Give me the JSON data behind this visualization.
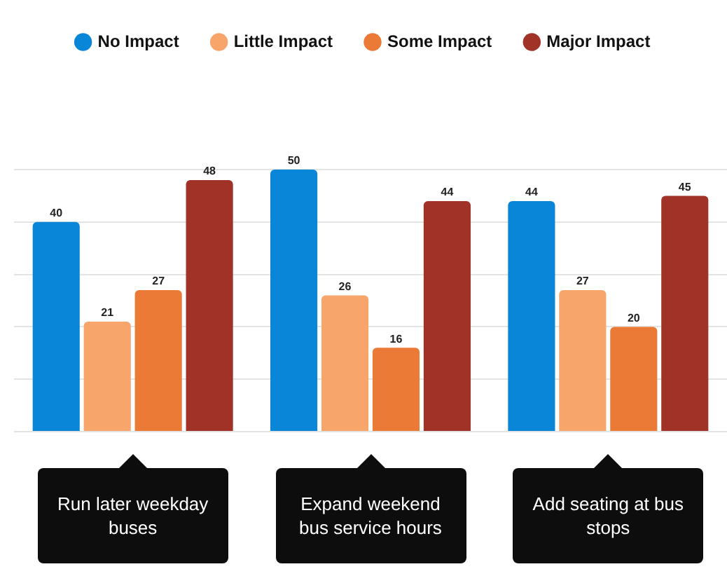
{
  "chart_data": {
    "type": "bar",
    "categories": [
      "Run later weekday buses",
      "Expand weekend bus service hours",
      "Add seating at bus stops"
    ],
    "series": [
      {
        "name": "No Impact",
        "color": "#0a86d8",
        "values": [
          40,
          50,
          44
        ]
      },
      {
        "name": "Little Impact",
        "color": "#f8a56c",
        "values": [
          21,
          26,
          27
        ]
      },
      {
        "name": "Some Impact",
        "color": "#ea7a35",
        "values": [
          27,
          16,
          20
        ]
      },
      {
        "name": "Major Impact",
        "color": "#a03228",
        "values": [
          48,
          44,
          45
        ]
      }
    ],
    "ylim": [
      0,
      50
    ],
    "yticks": [
      0,
      10,
      20,
      30,
      40,
      50
    ],
    "grid": "y",
    "tick_labels": "x",
    "legend": "top",
    "data_labels": true
  }
}
